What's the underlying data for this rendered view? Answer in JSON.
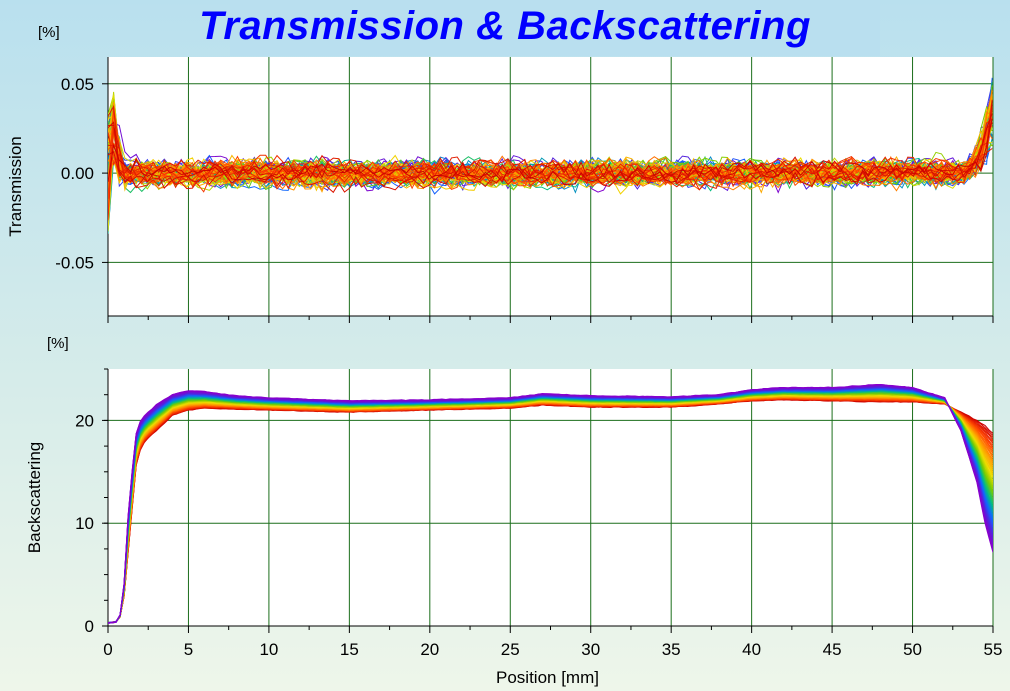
{
  "title": "Transmission & Backscattering",
  "colors": {
    "title": "#0000ff",
    "grid": "#1b6e1b",
    "plot_background": "#ffffff",
    "series_gradient": [
      "#cc0000",
      "#ff4400",
      "#ff9900",
      "#eedd00",
      "#77cc00",
      "#00bb88",
      "#1166ff",
      "#5522dd",
      "#8800cc"
    ]
  },
  "chart_data": [
    {
      "type": "line",
      "name": "transmission",
      "ylabel": "Transmission",
      "unit": "[%]",
      "xlim": [
        0,
        55
      ],
      "ylim": [
        -0.08,
        0.065
      ],
      "yticks": [
        0.05,
        0.0,
        -0.05
      ],
      "ytick_labels": [
        "0.05",
        "0.00",
        "-0.05"
      ],
      "xticks": [
        0,
        5,
        10,
        15,
        20,
        25,
        30,
        35,
        40,
        45,
        50,
        55
      ],
      "grid": true,
      "series_count": 80,
      "profile_x": [
        0,
        0.3,
        0.6,
        1,
        2,
        5,
        10,
        20,
        30,
        40,
        50,
        53,
        54,
        54.5,
        55
      ],
      "profile_y": [
        0.0,
        0.03,
        0.01,
        0.0,
        0.0,
        0.0,
        0.0,
        0.0,
        0.0,
        0.0,
        0.0,
        0.0,
        0.005,
        0.015,
        0.03
      ],
      "noise_amplitude": 0.012
    },
    {
      "type": "line",
      "name": "backscattering",
      "ylabel": "Backscattering",
      "xlabel": "Position [mm]",
      "unit": "[%]",
      "xlim": [
        0,
        55
      ],
      "ylim": [
        0,
        25
      ],
      "yticks": [
        20,
        10,
        0
      ],
      "ytick_labels": [
        "20",
        "10",
        "0"
      ],
      "xticks": [
        0,
        5,
        10,
        15,
        20,
        25,
        30,
        35,
        40,
        45,
        50,
        55
      ],
      "xtick_labels": [
        "0",
        "5",
        "10",
        "15",
        "20",
        "25",
        "30",
        "35",
        "40",
        "45",
        "50",
        "55"
      ],
      "grid": true,
      "series_count": 60,
      "profile_x": [
        0,
        0.5,
        0.9,
        1.3,
        1.8,
        2.3,
        3,
        4,
        5,
        6,
        8,
        10,
        15,
        20,
        25,
        27,
        30,
        35,
        38,
        40,
        42,
        45,
        48,
        50,
        52,
        53,
        54,
        54.5,
        55
      ],
      "first_y": [
        0.3,
        0.4,
        1.2,
        8.0,
        16.5,
        18.0,
        19.0,
        20.5,
        21.0,
        21.2,
        21.1,
        21.0,
        20.8,
        21.0,
        21.2,
        21.5,
        21.3,
        21.3,
        21.6,
        21.9,
        22.0,
        21.9,
        21.8,
        21.8,
        21.6,
        20.8,
        20.0,
        19.5,
        18.7
      ],
      "last_y": [
        0.3,
        0.4,
        1.5,
        12.0,
        19.5,
        20.5,
        21.5,
        22.5,
        22.9,
        22.8,
        22.4,
        22.2,
        21.9,
        22.0,
        22.2,
        22.6,
        22.4,
        22.3,
        22.5,
        23.0,
        23.2,
        23.2,
        23.5,
        23.2,
        22.2,
        19.0,
        14.0,
        10.0,
        7.2
      ]
    }
  ]
}
